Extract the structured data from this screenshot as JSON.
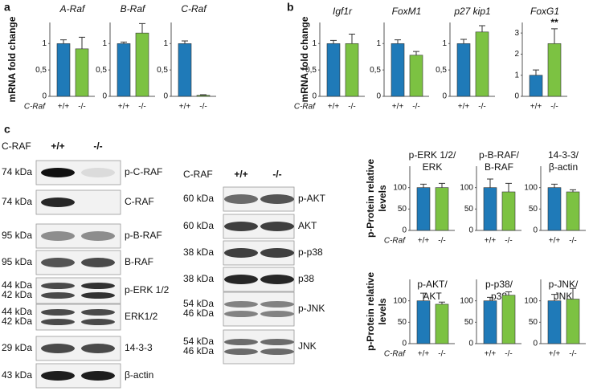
{
  "panel_labels": [
    "a",
    "b",
    "c"
  ],
  "blots": [
    {
      "genotype_label": "C-RAF",
      "genotypes": [
        "+/+",
        "-/-"
      ],
      "rows": [
        {
          "kda": [
            "74 kDa"
          ],
          "protein": "p-C-RAF"
        },
        {
          "kda": [
            "74 kDa"
          ],
          "protein": "C-RAF"
        },
        {
          "kda": [
            "95 kDa"
          ],
          "protein": "p-B-RAF"
        },
        {
          "kda": [
            "95 kDa"
          ],
          "protein": "B-RAF"
        },
        {
          "kda": [
            "44 kDa",
            "42 kDa"
          ],
          "protein": "p-ERK 1/2"
        },
        {
          "kda": [
            "44 kDa",
            "42 kDa"
          ],
          "protein": "ERK1/2"
        },
        {
          "kda": [
            "29 kDa"
          ],
          "protein": "14-3-3"
        },
        {
          "kda": [
            "43 kDa"
          ],
          "protein": "β-actin"
        }
      ]
    },
    {
      "genotype_label": "C-RAF",
      "genotypes": [
        "+/+",
        "-/-"
      ],
      "rows": [
        {
          "kda": [
            "60 kDa"
          ],
          "protein": "p-AKT"
        },
        {
          "kda": [
            "60 kDa"
          ],
          "protein": "AKT"
        },
        {
          "kda": [
            "38 kDa"
          ],
          "protein": "p-p38"
        },
        {
          "kda": [
            "38 kDa"
          ],
          "protein": "p38"
        },
        {
          "kda": [
            "54 kDa",
            "46 kDa"
          ],
          "protein": "p-JNK"
        },
        {
          "kda": [
            "54 kDa",
            "46 kDa"
          ],
          "protein": "JNK"
        }
      ]
    }
  ],
  "chart_data": [
    {
      "type": "bar",
      "title": "A-Raf",
      "title_style": "italic",
      "y_label": "mRNA fold change",
      "category_label": "C-Raf",
      "categories": [
        "+/+",
        "-/-"
      ],
      "values": [
        1.0,
        0.9
      ],
      "errors": [
        0.07,
        0.22
      ],
      "colors": [
        "#1f7ab8",
        "#7cc242"
      ],
      "ylim": [
        0,
        1.4
      ],
      "yticks": [
        0,
        {
          "value": 0.5,
          "label": "0,5"
        },
        1
      ]
    },
    {
      "type": "bar",
      "title": "B-Raf",
      "title_style": "italic",
      "categories": [
        "+/+",
        "-/-"
      ],
      "values": [
        1.0,
        1.2
      ],
      "errors": [
        0.03,
        0.18
      ],
      "colors": [
        "#1f7ab8",
        "#7cc242"
      ],
      "ylim": [
        0,
        1.4
      ],
      "yticks": [
        0,
        {
          "value": 0.5,
          "label": "0,5"
        },
        1
      ]
    },
    {
      "type": "bar",
      "title": "C-Raf",
      "title_style": "italic",
      "categories": [
        "+/+",
        "-/-"
      ],
      "values": [
        1.0,
        0.02
      ],
      "errors": [
        0.05,
        0.01
      ],
      "colors": [
        "#1f7ab8",
        "#7cc242"
      ],
      "ylim": [
        0,
        1.4
      ],
      "yticks": [
        0,
        {
          "value": 0.5,
          "label": "0,5"
        },
        1
      ]
    },
    {
      "type": "bar",
      "title": "Igf1r",
      "title_style": "italic",
      "y_label": "mRNA fold change",
      "category_label": "C-Raf",
      "categories": [
        "+/+",
        "-/-"
      ],
      "values": [
        1.0,
        1.0
      ],
      "errors": [
        0.06,
        0.18
      ],
      "colors": [
        "#1f7ab8",
        "#7cc242"
      ],
      "ylim": [
        0,
        1.4
      ],
      "yticks": [
        0,
        {
          "value": 0.5,
          "label": "0,5"
        },
        1
      ]
    },
    {
      "type": "bar",
      "title": "FoxM1",
      "title_style": "italic",
      "categories": [
        "+/+",
        "-/-"
      ],
      "values": [
        1.0,
        0.78
      ],
      "errors": [
        0.07,
        0.07
      ],
      "colors": [
        "#1f7ab8",
        "#7cc242"
      ],
      "ylim": [
        0,
        1.4
      ],
      "yticks": [
        0,
        {
          "value": 0.5,
          "label": "0,5"
        },
        1
      ]
    },
    {
      "type": "bar",
      "title": "p27 kip1",
      "title_style": "italic",
      "categories": [
        "+/+",
        "-/-"
      ],
      "values": [
        1.0,
        1.22
      ],
      "errors": [
        0.08,
        0.12
      ],
      "colors": [
        "#1f7ab8",
        "#7cc242"
      ],
      "ylim": [
        0,
        1.4
      ],
      "yticks": [
        0,
        {
          "value": 0.5,
          "label": "0,5"
        },
        1
      ]
    },
    {
      "type": "bar",
      "title": "FoxG1",
      "title_style": "italic",
      "categories": [
        "+/+",
        "-/-"
      ],
      "values": [
        1.0,
        2.5
      ],
      "errors": [
        0.25,
        0.7
      ],
      "colors": [
        "#1f7ab8",
        "#7cc242"
      ],
      "ylim": [
        0,
        3.5
      ],
      "yticks": [
        0,
        1,
        2,
        3
      ],
      "annotations": [
        {
          "index": 1,
          "text": "**"
        }
      ]
    },
    {
      "type": "bar",
      "title": [
        "p-ERK 1/2/",
        "ERK"
      ],
      "y_label": [
        "p-Protein relative",
        "levels"
      ],
      "category_label": "C-Raf",
      "categories": [
        "+/+",
        "-/-"
      ],
      "values": [
        100,
        100
      ],
      "errors": [
        8,
        10
      ],
      "colors": [
        "#1f7ab8",
        "#7cc242"
      ],
      "ylim": [
        0,
        150
      ],
      "yticks": [
        0,
        50,
        100
      ]
    },
    {
      "type": "bar",
      "title": [
        "p-B-RAF/",
        "B-RAF"
      ],
      "categories": [
        "+/+",
        "-/-"
      ],
      "values": [
        100,
        90
      ],
      "errors": [
        20,
        20
      ],
      "colors": [
        "#1f7ab8",
        "#7cc242"
      ],
      "ylim": [
        0,
        150
      ],
      "yticks": [
        0,
        50,
        100
      ]
    },
    {
      "type": "bar",
      "title": [
        "14-3-3/",
        "β-actin"
      ],
      "categories": [
        "+/+",
        "-/-"
      ],
      "values": [
        100,
        90
      ],
      "errors": [
        8,
        5
      ],
      "colors": [
        "#1f7ab8",
        "#7cc242"
      ],
      "ylim": [
        0,
        150
      ],
      "yticks": [
        0,
        50,
        100
      ]
    },
    {
      "type": "bar",
      "title": [
        "p-AKT/",
        "AKT"
      ],
      "y_label": [
        "p-Protein relative",
        "levels"
      ],
      "category_label": "C-Raf",
      "categories": [
        "+/+",
        "-/-"
      ],
      "values": [
        100,
        92
      ],
      "errors": [
        18,
        5
      ],
      "colors": [
        "#1f7ab8",
        "#7cc242"
      ],
      "ylim": [
        0,
        150
      ],
      "yticks": [
        0,
        50,
        100
      ]
    },
    {
      "type": "bar",
      "title": [
        "p-p38/",
        "p38"
      ],
      "categories": [
        "+/+",
        "-/-"
      ],
      "values": [
        100,
        113
      ],
      "errors": [
        8,
        8
      ],
      "colors": [
        "#1f7ab8",
        "#7cc242"
      ],
      "ylim": [
        0,
        150
      ],
      "yticks": [
        0,
        50,
        100
      ]
    },
    {
      "type": "bar",
      "title": [
        "p-JNK/",
        "JNK"
      ],
      "categories": [
        "+/+",
        "-/-"
      ],
      "values": [
        100,
        104
      ],
      "errors": [
        15,
        25
      ],
      "colors": [
        "#1f7ab8",
        "#7cc242"
      ],
      "ylim": [
        0,
        150
      ],
      "yticks": [
        0,
        50,
        100
      ]
    }
  ]
}
